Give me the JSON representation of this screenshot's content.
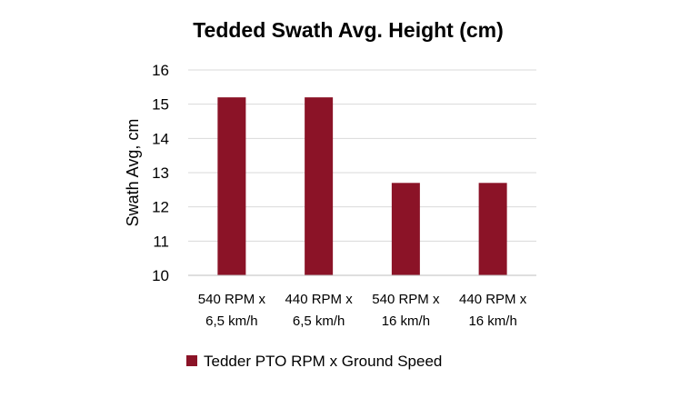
{
  "chart_data": {
    "type": "bar",
    "title": "Tedded Swath Avg. Height (cm)",
    "ylabel": "Swath Avg, cm",
    "xlabel": "",
    "categories": [
      [
        "540 RPM x",
        "6,5 km/h"
      ],
      [
        "440 RPM x",
        "6,5 km/h"
      ],
      [
        "540 RPM x",
        "16 km/h"
      ],
      [
        "440 RPM x",
        "16 km/h"
      ]
    ],
    "series": [
      {
        "name": "Tedder PTO RPM x Ground Speed",
        "values": [
          15.2,
          15.2,
          12.7,
          12.7
        ],
        "color": "#8b1327"
      }
    ],
    "ylim": [
      10,
      16
    ],
    "yticks": [
      10,
      11,
      12,
      13,
      14,
      15,
      16
    ],
    "grid": true,
    "legend_position": "bottom-left",
    "gridline_color": "#d9d9d9",
    "axis_color": "#bfbfbf"
  }
}
